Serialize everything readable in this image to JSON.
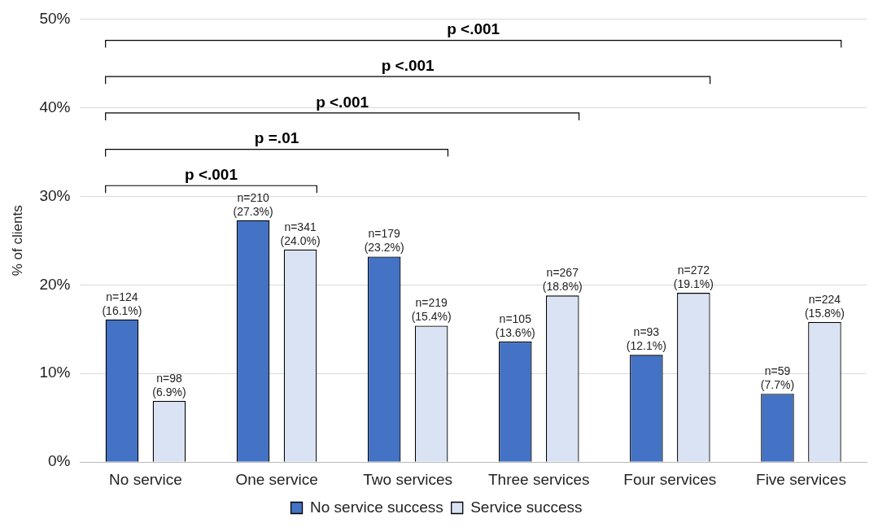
{
  "chart_data": {
    "type": "bar",
    "categories": [
      "No service",
      "One service",
      "Two services",
      "Three services",
      "Four services",
      "Five services"
    ],
    "ylabel": "% of clients",
    "ylim": [
      0,
      50
    ],
    "yticks": [
      {
        "value": 0,
        "label": "0%"
      },
      {
        "value": 10,
        "label": "10%"
      },
      {
        "value": 20,
        "label": "20%"
      },
      {
        "value": 30,
        "label": "30%"
      },
      {
        "value": 40,
        "label": "40%"
      },
      {
        "value": 50,
        "label": "50%"
      }
    ],
    "grid": "y",
    "legend": "bottom",
    "series": [
      {
        "name": "No service success",
        "color": "#4472c4",
        "values": [
          16.1,
          27.3,
          23.2,
          13.6,
          12.1,
          7.7
        ],
        "value_labels": [
          "n=124 (16.1%)",
          "n=210 (27.3%)",
          "n=179 (23.2%)",
          "n=105 (13.6%)",
          "n=93 (12.1%)",
          "n=59 (7.7%)"
        ]
      },
      {
        "name": "Service success",
        "color": "#dae3f3",
        "values": [
          6.9,
          24.0,
          15.4,
          18.8,
          19.1,
          15.8
        ],
        "value_labels": [
          "n=98 (6.9%)",
          "n=341 (24.0%)",
          "n=219 (15.4%)",
          "n=267 (18.8%)",
          "n=272 (19.1%)",
          "n=224 (15.8%)"
        ]
      }
    ],
    "annotations": [
      "p <.001",
      "p =.01",
      "p <.001",
      "p <.001",
      "p <.001"
    ]
  }
}
